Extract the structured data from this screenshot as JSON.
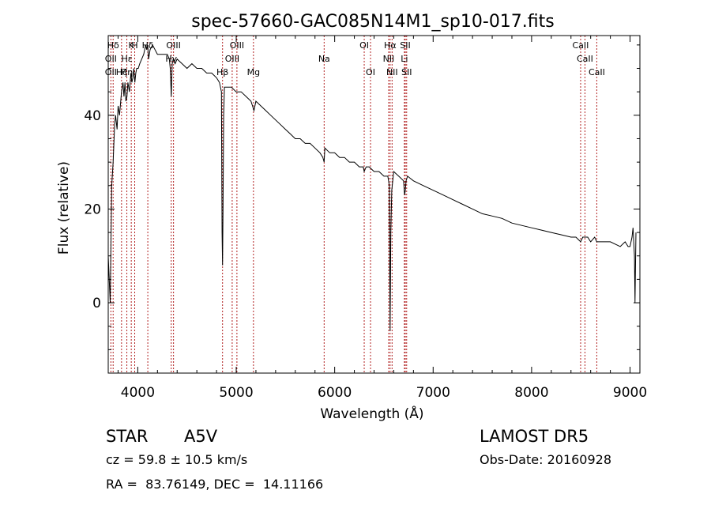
{
  "chart_data": {
    "type": "line",
    "title": "spec-57660-GAC085N14M1_sp10-017.fits",
    "xlabel": "Wavelength (Å)",
    "ylabel": "Flux (relative)",
    "xlim": [
      3700,
      9100
    ],
    "ylim": [
      -15,
      57
    ],
    "x_ticks": [
      4000,
      5000,
      6000,
      7000,
      8000,
      9000
    ],
    "y_ticks": [
      0,
      20,
      40
    ],
    "grid": false,
    "line_color": "#000000",
    "marker_color": "#b22222",
    "series": [
      {
        "x": [
          3700,
          3720,
          3735,
          3750,
          3765,
          3775,
          3790,
          3800,
          3815,
          3835,
          3850,
          3860,
          3870,
          3880,
          3890,
          3900,
          3915,
          3930,
          3940,
          3950,
          3960,
          3970,
          3980,
          3990,
          4005,
          4020,
          4040,
          4060,
          4080,
          4090,
          4100,
          4110,
          4125,
          4150,
          4175,
          4200,
          4225,
          4250,
          4275,
          4300,
          4320,
          4330,
          4340,
          4350,
          4360,
          4380,
          4400,
          4450,
          4500,
          4550,
          4600,
          4650,
          4700,
          4750,
          4800,
          4830,
          4850,
          4856,
          4861,
          4866,
          4872,
          4880,
          4900,
          4950,
          5000,
          5050,
          5100,
          5150,
          5180,
          5200,
          5250,
          5300,
          5350,
          5400,
          5450,
          5500,
          5550,
          5600,
          5650,
          5700,
          5750,
          5800,
          5850,
          5880,
          5893,
          5900,
          5950,
          6000,
          6050,
          6100,
          6150,
          6200,
          6250,
          6290,
          6300,
          6320,
          6350,
          6400,
          6450,
          6500,
          6520,
          6540,
          6555,
          6563,
          6570,
          6580,
          6600,
          6650,
          6700,
          6710,
          6718,
          6725,
          6740,
          6800,
          6900,
          7000,
          7100,
          7200,
          7300,
          7400,
          7500,
          7600,
          7700,
          7800,
          7900,
          8000,
          8100,
          8200,
          8300,
          8400,
          8450,
          8498,
          8520,
          8542,
          8570,
          8600,
          8640,
          8662,
          8700,
          8800,
          8900,
          8950,
          8980,
          9000,
          9020,
          9030,
          9045,
          9050,
          9060
        ],
        "y": [
          10,
          0,
          25,
          30,
          38,
          40,
          37,
          42,
          40,
          45,
          47,
          44,
          47,
          43,
          44,
          47,
          45,
          49,
          47,
          48,
          50,
          47,
          49,
          50,
          50,
          51,
          52,
          53,
          55,
          54,
          55,
          52,
          54,
          55,
          54,
          53,
          53,
          53,
          53,
          53,
          52,
          50,
          44,
          51,
          52,
          51,
          52,
          51,
          50,
          51,
          50,
          50,
          49,
          49,
          48,
          47,
          45,
          15,
          8,
          20,
          40,
          46,
          46,
          46,
          45,
          45,
          44,
          43,
          41,
          43,
          42,
          41,
          40,
          39,
          38,
          37,
          36,
          35,
          35,
          34,
          34,
          33,
          32,
          31,
          30,
          33,
          32,
          32,
          31,
          31,
          30,
          30,
          29,
          29,
          28,
          29,
          29,
          28,
          28,
          27,
          27,
          27,
          25,
          -6,
          15,
          24,
          28,
          27,
          26,
          23,
          24,
          26,
          27,
          26,
          25,
          24,
          23,
          22,
          21,
          20,
          19,
          18.5,
          18,
          17,
          16.5,
          16,
          15.5,
          15,
          14.5,
          14,
          14,
          13,
          14,
          14,
          14,
          13,
          14,
          13,
          13,
          13,
          12,
          13,
          12,
          12,
          14,
          16,
          10,
          0,
          15
        ]
      }
    ],
    "line_markers": [
      {
        "label": "Hδ",
        "x": 3750,
        "row": 1
      },
      {
        "label": "K",
        "x": 3934,
        "row": 1
      },
      {
        "label": "H",
        "x": 3969,
        "row": 1
      },
      {
        "label": "Hδ",
        "x": 4102,
        "row": 1
      },
      {
        "label": "OIII",
        "x": 4363,
        "row": 1
      },
      {
        "label": "OIII",
        "x": 5007,
        "row": 1
      },
      {
        "label": "OI",
        "x": 6300,
        "row": 1
      },
      {
        "label": "Hα",
        "x": 6563,
        "row": 1
      },
      {
        "label": "SII",
        "x": 6717,
        "row": 1
      },
      {
        "label": "CaII",
        "x": 8498,
        "row": 1
      },
      {
        "label": "OII",
        "x": 3727,
        "row": 2
      },
      {
        "label": "Hε",
        "x": 3889,
        "row": 2
      },
      {
        "label": "Hγ",
        "x": 4340,
        "row": 2
      },
      {
        "label": "OIII",
        "x": 4959,
        "row": 2
      },
      {
        "label": "Na",
        "x": 5893,
        "row": 2
      },
      {
        "label": "NII",
        "x": 6548,
        "row": 2
      },
      {
        "label": "Li",
        "x": 6708,
        "row": 2
      },
      {
        "label": "CaII",
        "x": 8542,
        "row": 2
      },
      {
        "label": "OII",
        "x": 3727,
        "row": 3
      },
      {
        "label": "Hζ",
        "x": 3835,
        "row": 3
      },
      {
        "label": "Hη",
        "x": 3889,
        "row": 3
      },
      {
        "label": "Hβ",
        "x": 4861,
        "row": 3
      },
      {
        "label": "Mg",
        "x": 5175,
        "row": 3
      },
      {
        "label": "OI",
        "x": 6364,
        "row": 3
      },
      {
        "label": "NII",
        "x": 6583,
        "row": 3
      },
      {
        "label": "SII",
        "x": 6731,
        "row": 3
      },
      {
        "label": "CaII",
        "x": 8662,
        "row": 3
      }
    ]
  },
  "footer": {
    "object_class": "STAR",
    "subclass": "A5V",
    "survey": "LAMOST DR5",
    "redshift": "cz = 59.8 ± 10.5 km/s",
    "obs_date": "Obs-Date: 20160928",
    "coords": "RA =  83.76149, DEC =  14.11166"
  }
}
